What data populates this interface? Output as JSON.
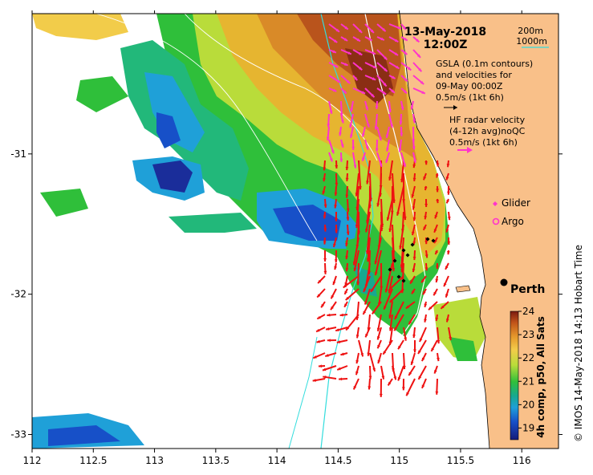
{
  "title": {
    "date": "13-May-2018",
    "time": "12:00Z"
  },
  "legend": {
    "isobaths": [
      "200m",
      "1000m"
    ],
    "gsla_lines": [
      "GSLA (0.1m contours)",
      "and velocities for",
      "09-May 00:00Z",
      "0.5m/s (1kt 6h)"
    ],
    "hf_lines": [
      "HF radar velocity",
      "(4-12h avg)noQC",
      "0.5m/s (1kt 6h)"
    ],
    "glider": "Glider",
    "argo": "Argo"
  },
  "place": {
    "perth": "Perth"
  },
  "axes": {
    "x_ticks": [
      "112",
      "112.5",
      "113",
      "113.5",
      "114",
      "114.5",
      "115",
      "115.5",
      "116"
    ],
    "y_ticks": [
      "-31",
      "-32",
      "-33"
    ],
    "x_range": [
      112,
      116.3
    ],
    "y_range": [
      -33.1,
      -30
    ]
  },
  "colorbar": {
    "ticks": [
      "24",
      "23",
      "22",
      "21",
      "20",
      "19"
    ],
    "label": "4h comp, p50, All Sats",
    "range": [
      18.5,
      24
    ]
  },
  "credit": "© IMOS 14-May-2018 14:13 Hobart Time",
  "colors": {
    "land": "#f9c089",
    "hf_vectors": "#ee1111",
    "gsla_vectors": "#ff33cc",
    "isobath_200": "#ffffff",
    "isobath_1000": "#33dddd"
  }
}
